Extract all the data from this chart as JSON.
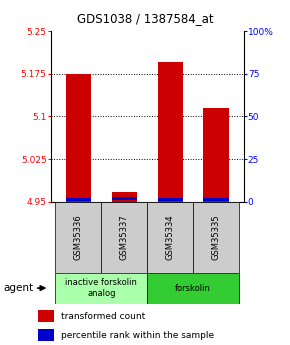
{
  "title": "GDS1038 / 1387584_at",
  "samples": [
    "GSM35336",
    "GSM35337",
    "GSM35334",
    "GSM35335"
  ],
  "red_values": [
    5.175,
    4.968,
    5.195,
    5.115
  ],
  "blue_values": [
    4.954,
    4.956,
    4.954,
    4.954
  ],
  "baseline": 4.95,
  "ylim": [
    4.95,
    5.25
  ],
  "yticks": [
    4.95,
    5.025,
    5.1,
    5.175,
    5.25
  ],
  "ytick_labels": [
    "4.95",
    "5.025",
    "5.1",
    "5.175",
    "5.25"
  ],
  "right_ytick_pcts": [
    0,
    25,
    50,
    75,
    100
  ],
  "right_ytick_labels": [
    "0",
    "25",
    "50",
    "75",
    "100%"
  ],
  "groups": [
    {
      "label": "inactive forskolin\nanalog",
      "cols": [
        0,
        1
      ],
      "color": "#aaffaa"
    },
    {
      "label": "forskolin",
      "cols": [
        2,
        3
      ],
      "color": "#33cc33"
    }
  ],
  "bar_width": 0.55,
  "red_color": "#cc0000",
  "blue_color": "#0000cc",
  "sample_bg": "#cccccc",
  "agent_label": "agent",
  "legend_red": "transformed count",
  "legend_blue": "percentile rank within the sample"
}
